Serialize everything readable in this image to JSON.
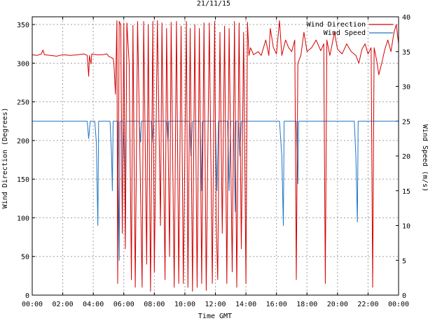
{
  "chart_data": {
    "type": "line",
    "title": "21/11/15",
    "xlabel": "Time GMT",
    "ylabel_left": "Wind Direction (Degrees)",
    "ylabel_right": "Wind Speed (m/s)",
    "x_unit": "hours",
    "xlim": [
      0,
      24
    ],
    "ylim_left": [
      0,
      360
    ],
    "ylim_right": [
      0,
      40
    ],
    "x_ticks": [
      0,
      2,
      4,
      6,
      8,
      10,
      12,
      14,
      16,
      18,
      20,
      22,
      24
    ],
    "x_tick_labels": [
      "00:00",
      "02:00",
      "04:00",
      "06:00",
      "08:00",
      "10:00",
      "12:00",
      "14:00",
      "16:00",
      "18:00",
      "20:00",
      "22:00",
      "00:00"
    ],
    "y_left_ticks": [
      0,
      50,
      100,
      150,
      200,
      250,
      300,
      350
    ],
    "y_right_ticks": [
      0,
      5,
      10,
      15,
      20,
      25,
      30,
      35,
      40
    ],
    "grid": true,
    "legend_position": "top-right",
    "series": [
      {
        "name": "Wind Direction",
        "axis": "left",
        "color": "#d40000",
        "points": [
          [
            0.0,
            311
          ],
          [
            0.3,
            310
          ],
          [
            0.6,
            312
          ],
          [
            0.7,
            317
          ],
          [
            0.8,
            311
          ],
          [
            1.2,
            310
          ],
          [
            1.6,
            309
          ],
          [
            2.0,
            311
          ],
          [
            2.5,
            310
          ],
          [
            3.0,
            311
          ],
          [
            3.4,
            312
          ],
          [
            3.6,
            310
          ],
          [
            3.7,
            283
          ],
          [
            3.75,
            310
          ],
          [
            3.85,
            299
          ],
          [
            3.9,
            312
          ],
          [
            4.2,
            311
          ],
          [
            4.6,
            311
          ],
          [
            4.9,
            312
          ],
          [
            5.0,
            309
          ],
          [
            5.3,
            306
          ],
          [
            5.35,
            300
          ],
          [
            5.45,
            260
          ],
          [
            5.55,
            355
          ],
          [
            5.6,
            15
          ],
          [
            5.7,
            354
          ],
          [
            5.8,
            350
          ],
          [
            5.9,
            80
          ],
          [
            6.0,
            352
          ],
          [
            6.1,
            60
          ],
          [
            6.2,
            352
          ],
          [
            6.35,
            300
          ],
          [
            6.5,
            20
          ],
          [
            6.6,
            349
          ],
          [
            6.75,
            10
          ],
          [
            6.9,
            354
          ],
          [
            7.0,
            250
          ],
          [
            7.2,
            10
          ],
          [
            7.3,
            354
          ],
          [
            7.5,
            40
          ],
          [
            7.6,
            350
          ],
          [
            7.75,
            5
          ],
          [
            7.9,
            354
          ],
          [
            8.0,
            30
          ],
          [
            8.2,
            355
          ],
          [
            8.4,
            90
          ],
          [
            8.5,
            352
          ],
          [
            8.7,
            20
          ],
          [
            8.8,
            345
          ],
          [
            9.0,
            50
          ],
          [
            9.1,
            353
          ],
          [
            9.3,
            10
          ],
          [
            9.45,
            354
          ],
          [
            9.6,
            15
          ],
          [
            9.75,
            348
          ],
          [
            9.9,
            15
          ],
          [
            10.1,
            354
          ],
          [
            10.2,
            10
          ],
          [
            10.35,
            345
          ],
          [
            10.5,
            5
          ],
          [
            10.65,
            350
          ],
          [
            10.8,
            10
          ],
          [
            10.95,
            345
          ],
          [
            11.1,
            15
          ],
          [
            11.25,
            352
          ],
          [
            11.4,
            6
          ],
          [
            11.6,
            352
          ],
          [
            11.8,
            15
          ],
          [
            11.95,
            354
          ],
          [
            12.05,
            95
          ],
          [
            12.15,
            20
          ],
          [
            12.3,
            340
          ],
          [
            12.45,
            80
          ],
          [
            12.6,
            348
          ],
          [
            12.75,
            15
          ],
          [
            12.9,
            345
          ],
          [
            13.1,
            30
          ],
          [
            13.25,
            354
          ],
          [
            13.4,
            10
          ],
          [
            13.55,
            352
          ],
          [
            13.7,
            60
          ],
          [
            13.85,
            340
          ],
          [
            14.0,
            15
          ],
          [
            14.1,
            353
          ],
          [
            14.2,
            310
          ],
          [
            14.3,
            320
          ],
          [
            14.5,
            311
          ],
          [
            14.8,
            315
          ],
          [
            15.0,
            310
          ],
          [
            15.3,
            330
          ],
          [
            15.5,
            310
          ],
          [
            15.6,
            345
          ],
          [
            15.8,
            320
          ],
          [
            16.0,
            312
          ],
          [
            16.2,
            355
          ],
          [
            16.35,
            310
          ],
          [
            16.6,
            330
          ],
          [
            16.8,
            320
          ],
          [
            17.0,
            315
          ],
          [
            17.2,
            330
          ],
          [
            17.3,
            20
          ],
          [
            17.4,
            300
          ],
          [
            17.6,
            310
          ],
          [
            17.8,
            340
          ],
          [
            18.0,
            315
          ],
          [
            18.3,
            320
          ],
          [
            18.6,
            330
          ],
          [
            18.9,
            316
          ],
          [
            19.1,
            325
          ],
          [
            19.2,
            15
          ],
          [
            19.3,
            330
          ],
          [
            19.5,
            310
          ],
          [
            19.8,
            340
          ],
          [
            20.0,
            318
          ],
          [
            20.3,
            312
          ],
          [
            20.6,
            325
          ],
          [
            20.9,
            315
          ],
          [
            21.2,
            310
          ],
          [
            21.4,
            300
          ],
          [
            21.6,
            318
          ],
          [
            21.8,
            325
          ],
          [
            22.0,
            312
          ],
          [
            22.2,
            320
          ],
          [
            22.3,
            10
          ],
          [
            22.4,
            320
          ],
          [
            22.6,
            300
          ],
          [
            22.7,
            285
          ],
          [
            22.9,
            300
          ],
          [
            23.1,
            318
          ],
          [
            23.3,
            330
          ],
          [
            23.5,
            315
          ],
          [
            23.7,
            340
          ],
          [
            23.85,
            350
          ],
          [
            24.0,
            325
          ]
        ]
      },
      {
        "name": "Wind Speed",
        "axis": "right",
        "color": "#1f77c4",
        "points": [
          [
            0.0,
            25.0
          ],
          [
            3.6,
            25.0
          ],
          [
            3.7,
            22.5
          ],
          [
            3.8,
            25.0
          ],
          [
            4.1,
            25.0
          ],
          [
            4.2,
            22.0
          ],
          [
            4.3,
            10.0
          ],
          [
            4.35,
            25.0
          ],
          [
            5.1,
            25.0
          ],
          [
            5.2,
            20.0
          ],
          [
            5.25,
            15.0
          ],
          [
            5.3,
            25.0
          ],
          [
            5.6,
            25.0
          ],
          [
            5.7,
            5.0
          ],
          [
            5.75,
            25.0
          ],
          [
            5.95,
            25.0
          ],
          [
            6.05,
            18.0
          ],
          [
            6.1,
            8.0
          ],
          [
            6.15,
            25.0
          ],
          [
            7.0,
            25.0
          ],
          [
            7.1,
            22.0
          ],
          [
            7.15,
            25.0
          ],
          [
            7.8,
            25.0
          ],
          [
            7.85,
            22.0
          ],
          [
            7.95,
            25.0
          ],
          [
            8.8,
            25.0
          ],
          [
            8.9,
            22.0
          ],
          [
            8.95,
            25.0
          ],
          [
            10.3,
            25.0
          ],
          [
            10.4,
            20.0
          ],
          [
            10.5,
            25.0
          ],
          [
            11.0,
            25.0
          ],
          [
            11.1,
            15.0
          ],
          [
            11.15,
            25.0
          ],
          [
            12.0,
            25.0
          ],
          [
            12.1,
            15.0
          ],
          [
            12.2,
            25.0
          ],
          [
            12.8,
            25.0
          ],
          [
            12.9,
            15.0
          ],
          [
            13.0,
            25.0
          ],
          [
            13.2,
            25.0
          ],
          [
            13.3,
            12.0
          ],
          [
            13.35,
            25.0
          ],
          [
            13.5,
            25.0
          ],
          [
            13.6,
            20.0
          ],
          [
            13.7,
            25.0
          ],
          [
            16.2,
            25.0
          ],
          [
            16.35,
            20.0
          ],
          [
            16.45,
            10.0
          ],
          [
            16.5,
            25.0
          ],
          [
            17.3,
            25.0
          ],
          [
            17.4,
            16.0
          ],
          [
            17.45,
            25.0
          ],
          [
            21.1,
            25.0
          ],
          [
            21.2,
            20.0
          ],
          [
            21.3,
            10.5
          ],
          [
            21.35,
            25.0
          ],
          [
            24.0,
            25.0
          ]
        ]
      }
    ]
  }
}
